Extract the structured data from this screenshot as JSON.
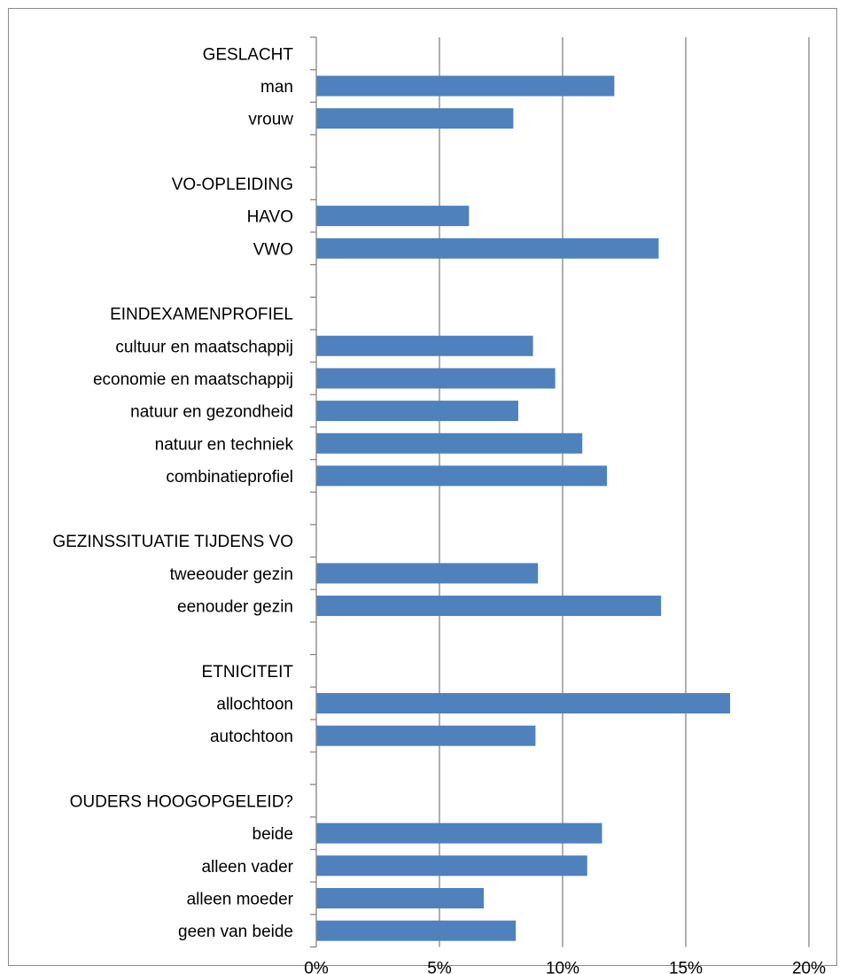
{
  "chart_data": {
    "type": "bar",
    "orientation": "horizontal",
    "categories": [
      "GESLACHT",
      "man",
      "vrouw",
      "",
      "VO-OPLEIDING",
      "HAVO",
      "VWO",
      "",
      "EINDEXAMENPROFIEL",
      "cultuur en maatschappij",
      "economie en maatschappij",
      "natuur en gezondheid",
      "natuur en techniek",
      "combinatieprofiel",
      "",
      "GEZINSSITUATIE  TIJDENS VO",
      "tweeouder gezin",
      "eenouder gezin",
      "",
      "ETNICITEIT",
      "allochtoon",
      "autochtoon",
      "",
      "OUDERS HOOGOPGELEID?",
      "beide",
      "alleen vader",
      "alleen moeder",
      "geen van beide"
    ],
    "values": [
      null,
      12.1,
      8.0,
      null,
      null,
      6.2,
      13.9,
      null,
      null,
      8.8,
      9.7,
      8.2,
      10.8,
      11.8,
      null,
      null,
      9.0,
      14.0,
      null,
      null,
      16.8,
      8.9,
      null,
      null,
      11.6,
      11.0,
      6.8,
      8.1
    ],
    "xlim": [
      0,
      20
    ],
    "xticks": [
      "0%",
      "5%",
      "10%",
      "15%",
      "20%"
    ],
    "grid": true,
    "bar_color": "#4f81bd",
    "grid_color": "#868686",
    "axis_color": "#868686"
  }
}
